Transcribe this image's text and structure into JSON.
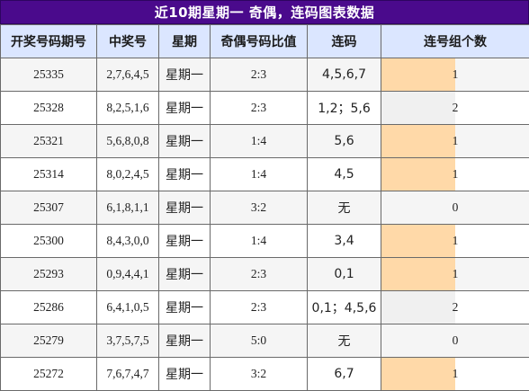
{
  "title": "近10期星期一 奇偶，连码图表数据",
  "headers": [
    "开奖号码期号",
    "中奖号",
    "星期",
    "奇偶号码比值",
    "连码",
    "连号组个数"
  ],
  "colors": {
    "title_bg": "#4a0a8c",
    "header_bg": "#dbe6ff",
    "bar_fill": "#ffd9a8",
    "bar_fill_alt": "#f0f0f0"
  },
  "rows": [
    {
      "issue": "25335",
      "numbers": "2,7,6,4,5",
      "weekday": "星期一",
      "ratio": "2:3",
      "consecutive": "4,5,6,7",
      "count": 1
    },
    {
      "issue": "25328",
      "numbers": "8,2,5,1,6",
      "weekday": "星期一",
      "ratio": "2:3",
      "consecutive": "1,2；5,6",
      "count": 2
    },
    {
      "issue": "25321",
      "numbers": "5,6,8,0,8",
      "weekday": "星期一",
      "ratio": "1:4",
      "consecutive": "5,6",
      "count": 1
    },
    {
      "issue": "25314",
      "numbers": "8,0,2,4,5",
      "weekday": "星期一",
      "ratio": "1:4",
      "consecutive": "4,5",
      "count": 1
    },
    {
      "issue": "25307",
      "numbers": "6,1,8,1,1",
      "weekday": "星期一",
      "ratio": "3:2",
      "consecutive": "无",
      "count": 0
    },
    {
      "issue": "25300",
      "numbers": "8,4,3,0,0",
      "weekday": "星期一",
      "ratio": "1:4",
      "consecutive": "3,4",
      "count": 1
    },
    {
      "issue": "25293",
      "numbers": "0,9,4,4,1",
      "weekday": "星期一",
      "ratio": "2:3",
      "consecutive": "0,1",
      "count": 1
    },
    {
      "issue": "25286",
      "numbers": "6,4,1,0,5",
      "weekday": "星期一",
      "ratio": "2:3",
      "consecutive": "0,1；4,5,6",
      "count": 2
    },
    {
      "issue": "25279",
      "numbers": "3,7,5,7,5",
      "weekday": "星期一",
      "ratio": "5:0",
      "consecutive": "无",
      "count": 0
    },
    {
      "issue": "25272",
      "numbers": "7,6,7,4,7",
      "weekday": "星期一",
      "ratio": "3:2",
      "consecutive": "6,7",
      "count": 1
    }
  ]
}
